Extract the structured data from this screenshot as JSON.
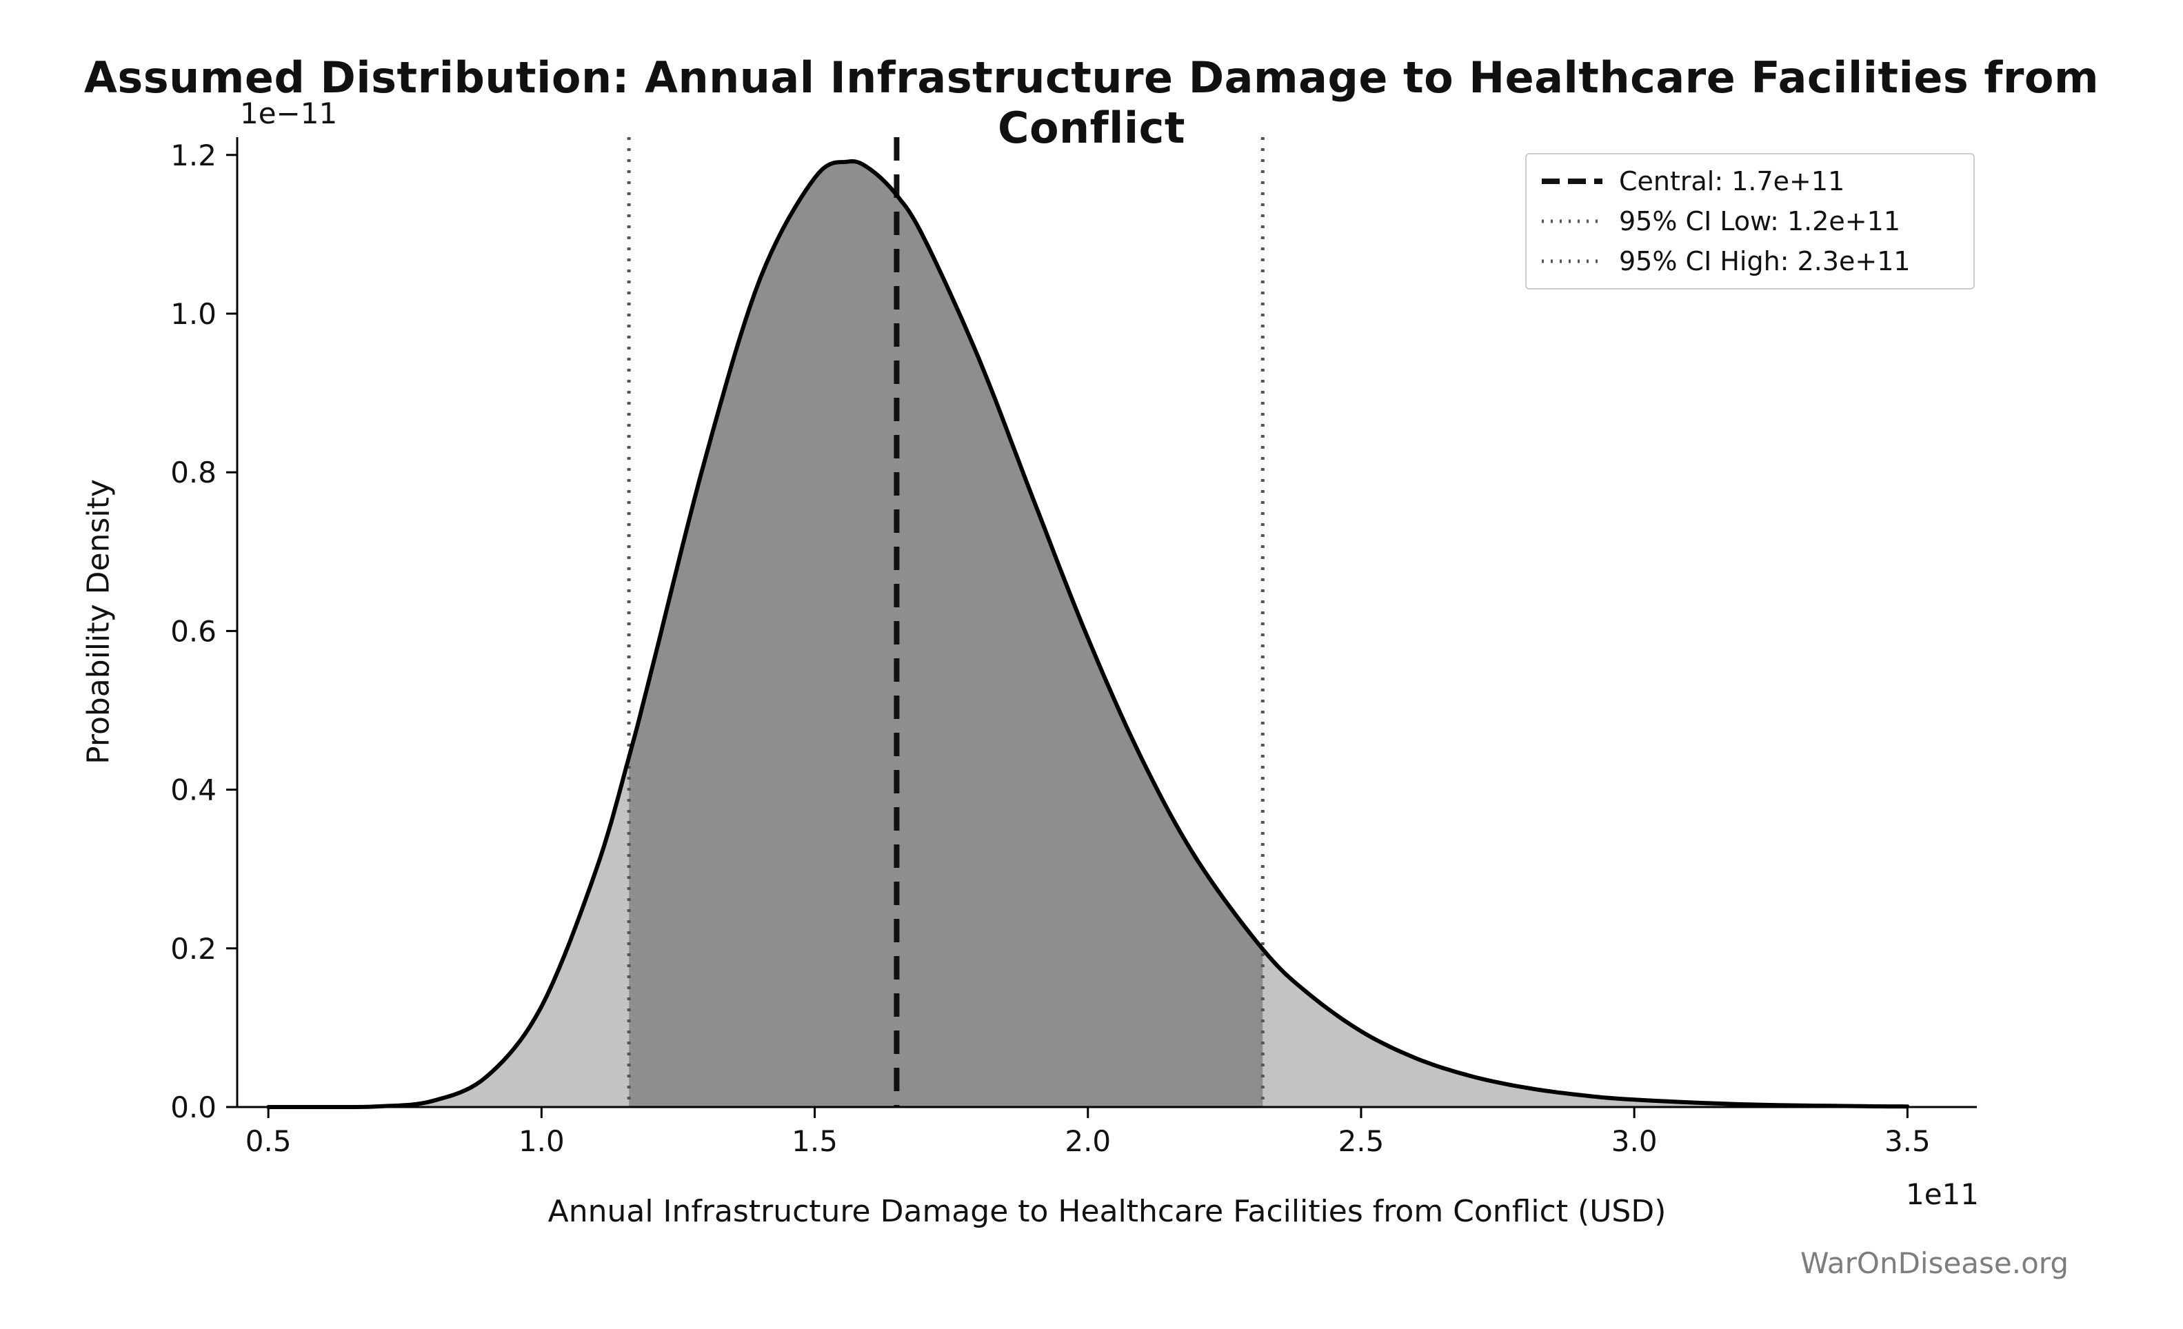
{
  "watermark": "WarOnDisease.org",
  "chart_data": {
    "type": "area",
    "title": "Assumed Distribution: Annual Infrastructure Damage to Healthcare Facilities from Conflict",
    "xlabel": "Annual Infrastructure Damage to Healthcare Facilities from Conflict (USD)",
    "ylabel": "Probability Density",
    "x_scale_note": "1e11",
    "y_scale_note": "1e−11",
    "xlim": [
      0.443,
      3.627
    ],
    "ylim": [
      0,
      1.2224
    ],
    "x_ticks": [
      0.5,
      1.0,
      1.5,
      2.0,
      2.5,
      3.0,
      3.5
    ],
    "y_ticks": [
      0.0,
      0.2,
      0.4,
      0.6,
      0.8,
      1.0,
      1.2
    ],
    "grid": false,
    "legend": {
      "position": "upper right",
      "entries": [
        {
          "label": "Central: 1.7e+11",
          "style": "dashed",
          "color": "#111111"
        },
        {
          "label": "95% CI Low: 1.2e+11",
          "style": "dotted",
          "color": "#555555"
        },
        {
          "label": "95% CI High: 2.3e+11",
          "style": "dotted",
          "color": "#555555"
        }
      ]
    },
    "markers": {
      "central": 1.65,
      "ci_low": 1.16,
      "ci_high": 2.32
    },
    "series": [
      {
        "name": "probability-density",
        "x": [
          0.5,
          0.6,
          0.7,
          0.8,
          0.9,
          1.0,
          1.1,
          1.16,
          1.2,
          1.3,
          1.4,
          1.5,
          1.56,
          1.6,
          1.65,
          1.7,
          1.8,
          1.9,
          2.0,
          2.1,
          2.2,
          2.32,
          2.4,
          2.5,
          2.6,
          2.7,
          2.8,
          2.9,
          3.0,
          3.2,
          3.4,
          3.5
        ],
        "y": [
          0.0,
          0.0,
          0.0008,
          0.0076,
          0.0387,
          0.1268,
          0.2991,
          0.441,
          0.5466,
          0.8181,
          1.0439,
          1.1711,
          1.1915,
          1.1827,
          1.1494,
          1.0953,
          0.944,
          0.7661,
          0.5911,
          0.437,
          0.3115,
          0.199,
          0.145,
          0.0955,
          0.0616,
          0.0392,
          0.0246,
          0.0152,
          0.0093,
          0.0034,
          0.0012,
          0.0007
        ]
      }
    ],
    "colors": {
      "curve": "#000000",
      "fill_outer": "#c3c3c3",
      "fill_ci": "#8e8e8e",
      "marker_central": "#111111",
      "marker_ci": "#555555",
      "axis": "#000000"
    }
  }
}
